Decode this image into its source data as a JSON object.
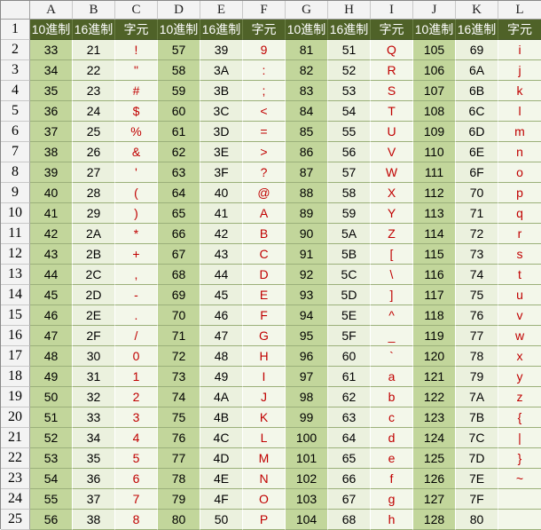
{
  "column_letters": [
    "A",
    "B",
    "C",
    "D",
    "E",
    "F",
    "G",
    "H",
    "I",
    "J",
    "K",
    "L"
  ],
  "header_labels": [
    "10進制",
    "16進制",
    "字元",
    "10進制",
    "16進制",
    "字元",
    "10進制",
    "16進制",
    "字元",
    "10進制",
    "16進制",
    "字元"
  ],
  "rows": [
    {
      "n": "2",
      "cells": [
        "33",
        "21",
        "!",
        "57",
        "39",
        "9",
        "81",
        "51",
        "Q",
        "105",
        "69",
        "i"
      ]
    },
    {
      "n": "3",
      "cells": [
        "34",
        "22",
        "\"",
        "58",
        "3A",
        ":",
        "82",
        "52",
        "R",
        "106",
        "6A",
        "j"
      ]
    },
    {
      "n": "4",
      "cells": [
        "35",
        "23",
        "#",
        "59",
        "3B",
        ";",
        "83",
        "53",
        "S",
        "107",
        "6B",
        "k"
      ]
    },
    {
      "n": "5",
      "cells": [
        "36",
        "24",
        "$",
        "60",
        "3C",
        "<",
        "84",
        "54",
        "T",
        "108",
        "6C",
        "l"
      ]
    },
    {
      "n": "6",
      "cells": [
        "37",
        "25",
        "%",
        "61",
        "3D",
        "=",
        "85",
        "55",
        "U",
        "109",
        "6D",
        "m"
      ]
    },
    {
      "n": "7",
      "cells": [
        "38",
        "26",
        "&",
        "62",
        "3E",
        ">",
        "86",
        "56",
        "V",
        "110",
        "6E",
        "n"
      ]
    },
    {
      "n": "8",
      "cells": [
        "39",
        "27",
        "'",
        "63",
        "3F",
        "?",
        "87",
        "57",
        "W",
        "111",
        "6F",
        "o"
      ]
    },
    {
      "n": "9",
      "cells": [
        "40",
        "28",
        "(",
        "64",
        "40",
        "@",
        "88",
        "58",
        "X",
        "112",
        "70",
        "p"
      ]
    },
    {
      "n": "10",
      "cells": [
        "41",
        "29",
        ")",
        "65",
        "41",
        "A",
        "89",
        "59",
        "Y",
        "113",
        "71",
        "q"
      ]
    },
    {
      "n": "11",
      "cells": [
        "42",
        "2A",
        "*",
        "66",
        "42",
        "B",
        "90",
        "5A",
        "Z",
        "114",
        "72",
        "r"
      ]
    },
    {
      "n": "12",
      "cells": [
        "43",
        "2B",
        "+",
        "67",
        "43",
        "C",
        "91",
        "5B",
        "[",
        "115",
        "73",
        "s"
      ]
    },
    {
      "n": "13",
      "cells": [
        "44",
        "2C",
        ",",
        "68",
        "44",
        "D",
        "92",
        "5C",
        "\\",
        "116",
        "74",
        "t"
      ]
    },
    {
      "n": "14",
      "cells": [
        "45",
        "2D",
        "-",
        "69",
        "45",
        "E",
        "93",
        "5D",
        "]",
        "117",
        "75",
        "u"
      ]
    },
    {
      "n": "15",
      "cells": [
        "46",
        "2E",
        ".",
        "70",
        "46",
        "F",
        "94",
        "5E",
        "^",
        "118",
        "76",
        "v"
      ]
    },
    {
      "n": "16",
      "cells": [
        "47",
        "2F",
        "/",
        "71",
        "47",
        "G",
        "95",
        "5F",
        "_",
        "119",
        "77",
        "w"
      ]
    },
    {
      "n": "17",
      "cells": [
        "48",
        "30",
        "0",
        "72",
        "48",
        "H",
        "96",
        "60",
        "`",
        "120",
        "78",
        "x"
      ]
    },
    {
      "n": "18",
      "cells": [
        "49",
        "31",
        "1",
        "73",
        "49",
        "I",
        "97",
        "61",
        "a",
        "121",
        "79",
        "y"
      ]
    },
    {
      "n": "19",
      "cells": [
        "50",
        "32",
        "2",
        "74",
        "4A",
        "J",
        "98",
        "62",
        "b",
        "122",
        "7A",
        "z"
      ]
    },
    {
      "n": "20",
      "cells": [
        "51",
        "33",
        "3",
        "75",
        "4B",
        "K",
        "99",
        "63",
        "c",
        "123",
        "7B",
        "{"
      ]
    },
    {
      "n": "21",
      "cells": [
        "52",
        "34",
        "4",
        "76",
        "4C",
        "L",
        "100",
        "64",
        "d",
        "124",
        "7C",
        "|"
      ]
    },
    {
      "n": "22",
      "cells": [
        "53",
        "35",
        "5",
        "77",
        "4D",
        "M",
        "101",
        "65",
        "e",
        "125",
        "7D",
        "}"
      ]
    },
    {
      "n": "23",
      "cells": [
        "54",
        "36",
        "6",
        "78",
        "4E",
        "N",
        "102",
        "66",
        "f",
        "126",
        "7E",
        "~"
      ]
    },
    {
      "n": "24",
      "cells": [
        "55",
        "37",
        "7",
        "79",
        "4F",
        "O",
        "103",
        "67",
        "g",
        "127",
        "7F",
        ""
      ]
    },
    {
      "n": "25",
      "cells": [
        "56",
        "38",
        "8",
        "80",
        "50",
        "P",
        "104",
        "68",
        "h",
        "128",
        "80",
        ""
      ]
    }
  ],
  "header_row_number": "1",
  "colors": {
    "header_bg": "#4f6228",
    "decimal_bg": "#c2d69b",
    "hex_bg": "#ebf1de",
    "char_text": "#c00000"
  }
}
